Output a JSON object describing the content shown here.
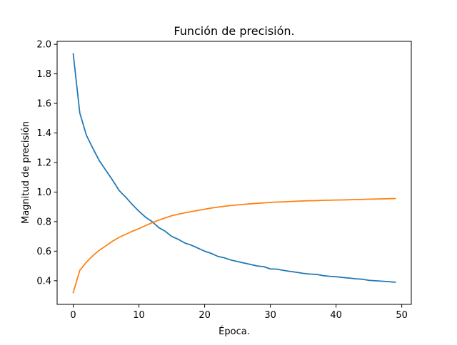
{
  "chart_data": {
    "type": "line",
    "title": "Función de precisión.",
    "xlabel": "Época.",
    "ylabel": "Magnitud de precisión",
    "xlim": [
      -2.45,
      51.45
    ],
    "ylim": [
      0.24,
      2.02
    ],
    "x_ticks": [
      0,
      10,
      20,
      30,
      40,
      50
    ],
    "y_ticks": [
      0.4,
      0.6,
      0.8,
      1.0,
      1.2,
      1.4,
      1.6,
      1.8,
      2.0
    ],
    "grid": false,
    "x": [
      0,
      1,
      2,
      3,
      4,
      5,
      6,
      7,
      8,
      9,
      10,
      11,
      12,
      13,
      14,
      15,
      16,
      17,
      18,
      19,
      20,
      21,
      22,
      23,
      24,
      25,
      26,
      27,
      28,
      29,
      30,
      31,
      32,
      33,
      34,
      35,
      36,
      37,
      38,
      39,
      40,
      41,
      42,
      43,
      44,
      45,
      46,
      47,
      48,
      49
    ],
    "series": [
      {
        "color": "#1f77b4",
        "values": [
          1.935,
          1.535,
          1.385,
          1.295,
          1.21,
          1.145,
          1.08,
          1.01,
          0.965,
          0.915,
          0.87,
          0.83,
          0.8,
          0.76,
          0.735,
          0.7,
          0.68,
          0.655,
          0.64,
          0.62,
          0.6,
          0.585,
          0.565,
          0.555,
          0.54,
          0.53,
          0.52,
          0.51,
          0.5,
          0.495,
          0.48,
          0.478,
          0.47,
          0.463,
          0.457,
          0.45,
          0.445,
          0.443,
          0.435,
          0.43,
          0.427,
          0.422,
          0.418,
          0.413,
          0.41,
          0.403,
          0.4,
          0.397,
          0.394,
          0.39
        ]
      },
      {
        "color": "#ff7f0e",
        "values": [
          0.32,
          0.47,
          0.525,
          0.57,
          0.607,
          0.637,
          0.668,
          0.694,
          0.714,
          0.735,
          0.753,
          0.773,
          0.792,
          0.81,
          0.825,
          0.84,
          0.85,
          0.86,
          0.868,
          0.876,
          0.884,
          0.892,
          0.898,
          0.904,
          0.909,
          0.913,
          0.917,
          0.921,
          0.924,
          0.927,
          0.93,
          0.932,
          0.934,
          0.936,
          0.938,
          0.94,
          0.941,
          0.942,
          0.944,
          0.945,
          0.946,
          0.947,
          0.948,
          0.949,
          0.95,
          0.952,
          0.953,
          0.954,
          0.955,
          0.956
        ]
      }
    ]
  }
}
